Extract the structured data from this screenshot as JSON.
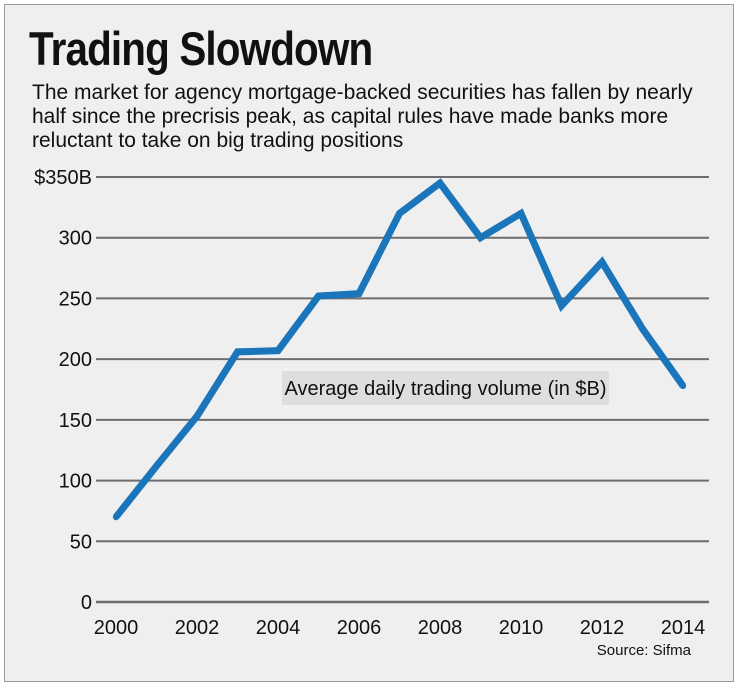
{
  "header": {
    "title": "Trading Slowdown",
    "subtitle": "The market for agency mortgage-backed securities has fallen by nearly half since the precrisis peak, as capital rules have made banks more reluctant to take on big trading positions"
  },
  "footer": {
    "source": "Source: Sifma"
  },
  "colors": {
    "line": "#1b75bb",
    "grid": "#6e6e6e",
    "panel": "#efefef",
    "label_box": "#dedede"
  },
  "chart_data": {
    "type": "line",
    "title": "Trading Slowdown",
    "series": [
      {
        "name": "Average daily trading volume (in $B)",
        "x": [
          2000,
          2001,
          2002,
          2003,
          2004,
          2005,
          2006,
          2007,
          2008,
          2009,
          2010,
          2011,
          2012,
          2013,
          2014
        ],
        "values": [
          70,
          112,
          153,
          206,
          207,
          252,
          254,
          320,
          345,
          300,
          320,
          244,
          280,
          225,
          178
        ]
      }
    ],
    "annotation": "Average daily trading volume (in $B)",
    "y_ticks": [
      {
        "value": 0,
        "label": "0"
      },
      {
        "value": 50,
        "label": "50"
      },
      {
        "value": 100,
        "label": "100"
      },
      {
        "value": 150,
        "label": "150"
      },
      {
        "value": 200,
        "label": "200"
      },
      {
        "value": 250,
        "label": "250"
      },
      {
        "value": 300,
        "label": "300"
      },
      {
        "value": 350,
        "label": "$350B"
      }
    ],
    "x_ticks": [
      {
        "value": 2000,
        "label": "2000"
      },
      {
        "value": 2002,
        "label": "2002"
      },
      {
        "value": 2004,
        "label": "2004"
      },
      {
        "value": 2006,
        "label": "2006"
      },
      {
        "value": 2008,
        "label": "2008"
      },
      {
        "value": 2010,
        "label": "2010"
      },
      {
        "value": 2012,
        "label": "2012"
      },
      {
        "value": 2014,
        "label": "2014"
      }
    ],
    "xlim": [
      2000,
      2014
    ],
    "ylim": [
      0,
      350
    ],
    "xlabel": "",
    "ylabel": "",
    "grid": true
  }
}
